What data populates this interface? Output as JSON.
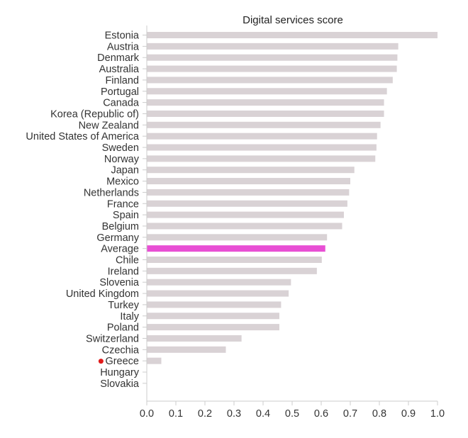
{
  "chart_data": {
    "type": "bar",
    "orientation": "horizontal",
    "title": "Digital services score",
    "xlabel": "",
    "ylabel": "",
    "xlim": [
      0,
      1.0
    ],
    "xticks": [
      "0.0",
      "0.1",
      "0.2",
      "0.3",
      "0.4",
      "0.5",
      "0.6",
      "0.7",
      "0.8",
      "0.9",
      "1.0"
    ],
    "grid": false,
    "categories": [
      "Estonia",
      "Austria",
      "Denmark",
      "Australia",
      "Finland",
      "Portugal",
      "Canada",
      "Korea (Republic of)",
      "New Zealand",
      "United States of America",
      "Sweden",
      "Norway",
      "Japan",
      "Mexico",
      "Netherlands",
      "France",
      "Spain",
      "Belgium",
      "Germany",
      "Average",
      "Chile",
      "Ireland",
      "Slovenia",
      "United Kingdom",
      "Turkey",
      "Italy",
      "Poland",
      "Switzerland",
      "Czechia",
      "Greece",
      "Hungary",
      "Slovakia"
    ],
    "values": [
      1.0,
      0.865,
      0.862,
      0.86,
      0.846,
      0.826,
      0.816,
      0.816,
      0.804,
      0.792,
      0.79,
      0.786,
      0.714,
      0.7,
      0.696,
      0.69,
      0.678,
      0.672,
      0.62,
      0.614,
      0.602,
      0.585,
      0.496,
      0.488,
      0.462,
      0.456,
      0.456,
      0.326,
      0.272,
      0.05,
      0.0,
      0.0
    ],
    "highlight": {
      "category": "Average",
      "color": "#e84fd4"
    },
    "marker": {
      "category": "Greece",
      "color": "#e01a1a"
    },
    "colors": {
      "bar": "#d9d2d5",
      "axis": "#cccccc",
      "text": "#333333"
    }
  }
}
